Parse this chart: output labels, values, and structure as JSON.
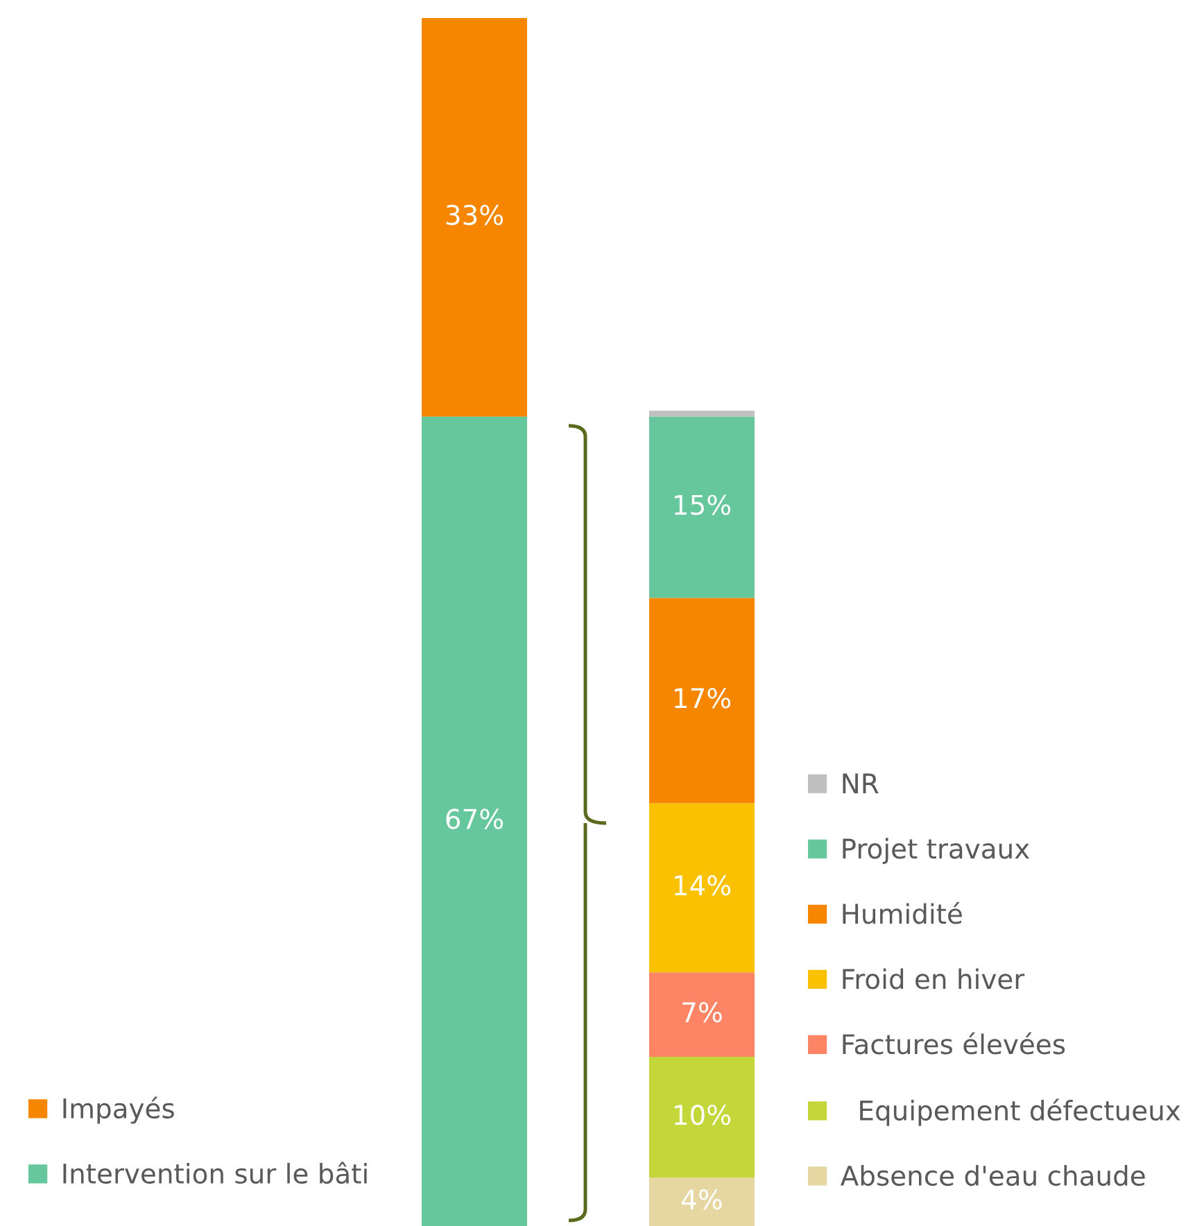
{
  "chart_data": {
    "type": "bar",
    "stacked": true,
    "categories": [
      null,
      null
    ],
    "legend": "right",
    "series": [
      {
        "name": "Intervention sur le bâti",
        "color": "#66c79c",
        "values": [
          67,
          null
        ],
        "value_labels": [
          "67%",
          null
        ]
      },
      {
        "name": "Impayés",
        "color": "#f68600",
        "values": [
          33,
          null
        ],
        "value_labels": [
          "33%",
          null
        ]
      },
      {
        "name": "Absence d'eau chaude",
        "color": "#e6d7a2",
        "values": [
          null,
          4
        ],
        "value_labels": [
          null,
          "4%"
        ]
      },
      {
        "name": "  Equipement défectueux",
        "color": "#c3d63a",
        "values": [
          null,
          10
        ],
        "value_labels": [
          null,
          "10%"
        ]
      },
      {
        "name": "Factures élevées",
        "color": "#fd8566",
        "values": [
          null,
          7
        ],
        "value_labels": [
          null,
          "7%"
        ]
      },
      {
        "name": "Froid en hiver",
        "color": "#f9c100",
        "values": [
          null,
          14
        ],
        "value_labels": [
          null,
          "14%"
        ]
      },
      {
        "name": "Humidité",
        "color": "#f68600",
        "values": [
          null,
          17
        ],
        "value_labels": [
          null,
          "17%"
        ]
      },
      {
        "name": "Projet travaux",
        "color": "#66c79c",
        "values": [
          null,
          15
        ],
        "value_labels": [
          null,
          "15%"
        ]
      },
      {
        "name": "NR",
        "color": "#c0c0c0",
        "values": [
          null,
          0.5
        ],
        "value_labels": [
          null,
          null
        ]
      }
    ]
  }
}
